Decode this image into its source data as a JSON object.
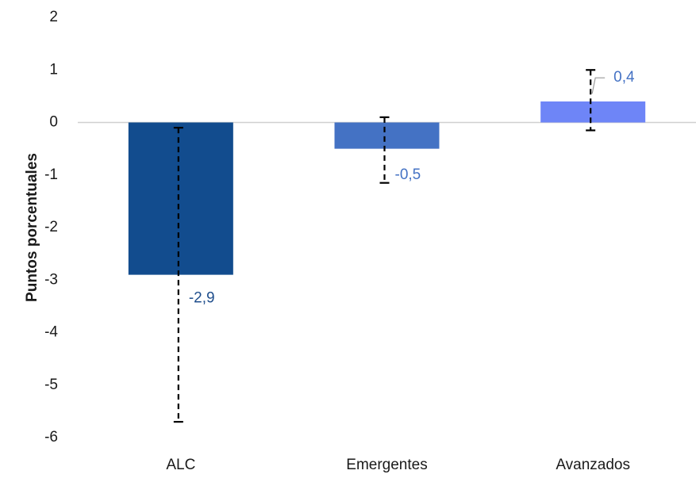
{
  "chart_data": {
    "type": "bar",
    "categories": [
      "ALC",
      "Emergentes",
      "Avanzados"
    ],
    "values": [
      -2.9,
      -0.5,
      0.4
    ],
    "data_labels": [
      "-2,9",
      "-0,5",
      "0,4"
    ],
    "error_bars": [
      {
        "low": -5.7,
        "high": -0.1
      },
      {
        "low": -1.15,
        "high": 0.1
      },
      {
        "low": -0.15,
        "high": 1.0
      }
    ],
    "ylabel": "Puntos porcentuales",
    "ylim": [
      -6,
      2
    ],
    "yticks": [
      2,
      1,
      0,
      -1,
      -2,
      -3,
      -4,
      -5,
      -6
    ],
    "ytick_labels": [
      "2",
      "1",
      "0",
      "-1",
      "-2",
      "-3",
      "-4",
      "-5",
      "-6"
    ],
    "bar_colors": [
      "#124C8E",
      "#4472C4",
      "#6E85F7"
    ],
    "label_colors": [
      "#1F4E8C",
      "#4472C4",
      "#4472C4"
    ],
    "axis_color": "#D0D0D0",
    "text_color": "#1a1a1a",
    "grid": false,
    "legend": "none"
  }
}
